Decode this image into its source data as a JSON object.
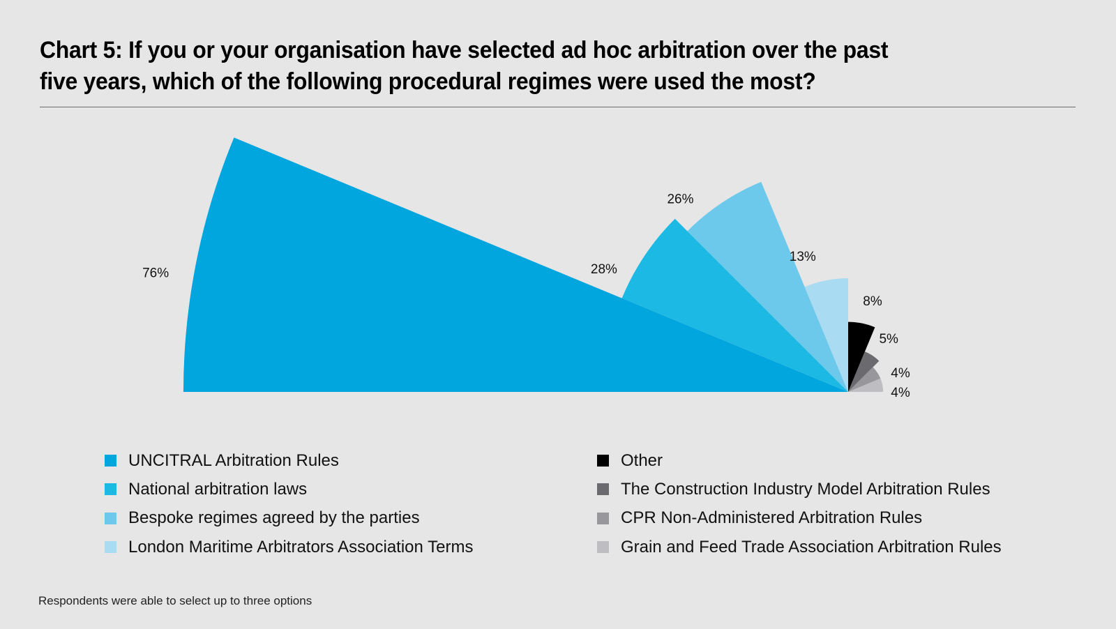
{
  "chart_data": {
    "type": "polar-area",
    "title": "Chart 5: If you or your organisation have selected ad hoc arbitration over the past five years, which of the following procedural regimes were used the most?",
    "unit": "%",
    "arrangement": "half-rose, wedges ordered left to right",
    "categories": [
      "UNCITRAL Arbitration Rules",
      "National arbitration laws",
      "Bespoke regimes agreed by the parties",
      "London Maritime Arbitrators Association Terms",
      "Other",
      "The Construction Industry Model Arbitration Rules",
      "CPR Non-Administered Arbitration Rules",
      "Grain and Feed Trade Association Arbitration Rules"
    ],
    "values": [
      76,
      28,
      26,
      13,
      8,
      5,
      4,
      4
    ],
    "data_labels": [
      "76%",
      "28%",
      "26%",
      "13%",
      "8%",
      "5%",
      "4%",
      "4%"
    ],
    "colors": [
      "#00a6dd",
      "#1bb9e4",
      "#6dc9eb",
      "#a9dcf2",
      "#000000",
      "#6b6b6f",
      "#98989c",
      "#bebec2"
    ],
    "legend_position": "bottom, two columns",
    "footnote": "Respondents were able to select up to three options"
  },
  "title_line1": "Chart 5: If you or your organisation have selected ad hoc arbitration over the past",
  "title_line2": "five years, which of the following procedural regimes were used the most?"
}
